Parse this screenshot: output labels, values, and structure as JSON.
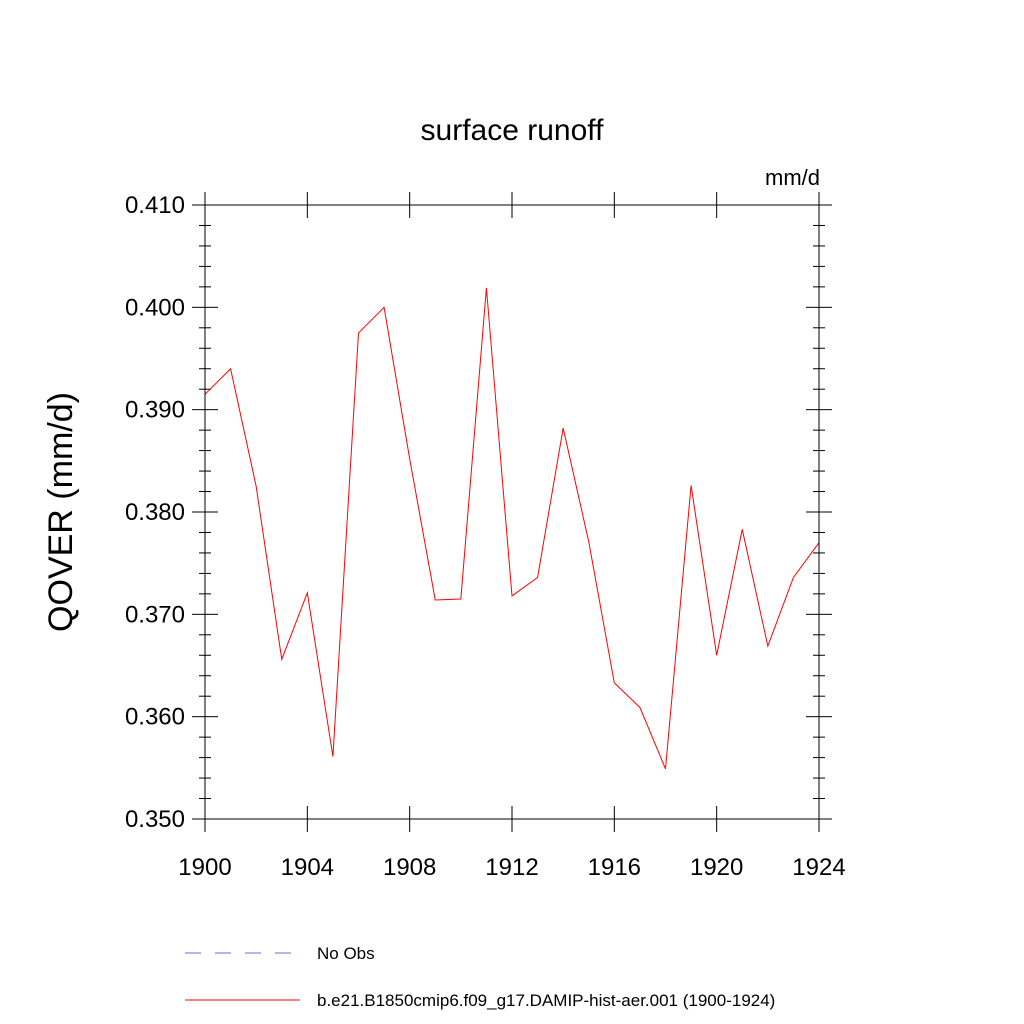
{
  "chart_data": {
    "type": "line",
    "title": "surface runoff",
    "units_label": "mm/d",
    "xlabel": "",
    "ylabel": "QOVER  (mm/d)",
    "xlim": [
      1900,
      1924
    ],
    "ylim": [
      0.35,
      0.41
    ],
    "x_ticks": [
      1900,
      1904,
      1908,
      1912,
      1916,
      1920,
      1924
    ],
    "x_tick_labels": [
      "1900",
      "1904",
      "1908",
      "1912",
      "1916",
      "1920",
      "1924"
    ],
    "y_ticks": [
      0.35,
      0.36,
      0.37,
      0.38,
      0.39,
      0.4,
      0.41
    ],
    "y_tick_labels": [
      "0.350",
      "0.360",
      "0.370",
      "0.380",
      "0.390",
      "0.400",
      "0.410"
    ],
    "grid": false,
    "legend_position": "bottom",
    "x": [
      1900,
      1901,
      1902,
      1903,
      1904,
      1905,
      1906,
      1907,
      1908,
      1909,
      1910,
      1911,
      1912,
      1913,
      1914,
      1915,
      1916,
      1917,
      1918,
      1919,
      1920,
      1921,
      1922,
      1923,
      1924
    ],
    "series": [
      {
        "name": "b.e21.B1850cmip6.f09_g17.DAMIP-hist-aer.001 (1900-1924)",
        "color": "#ff0000",
        "style": "solid",
        "values": [
          0.3915,
          0.394,
          0.3825,
          0.3656,
          0.3721,
          0.3561,
          0.3975,
          0.4,
          0.3852,
          0.3714,
          0.3715,
          0.4019,
          0.3718,
          0.3736,
          0.3882,
          0.3771,
          0.3633,
          0.3609,
          0.3549,
          0.3826,
          0.366,
          0.3783,
          0.3669,
          0.3736,
          0.377
        ]
      }
    ],
    "legend": [
      {
        "label": "No Obs",
        "color": "#6b6bd6",
        "style": "dashed"
      },
      {
        "label": "b.e21.B1850cmip6.f09_g17.DAMIP-hist-aer.001 (1900-1924)",
        "color": "#ff0000",
        "style": "solid"
      }
    ]
  }
}
